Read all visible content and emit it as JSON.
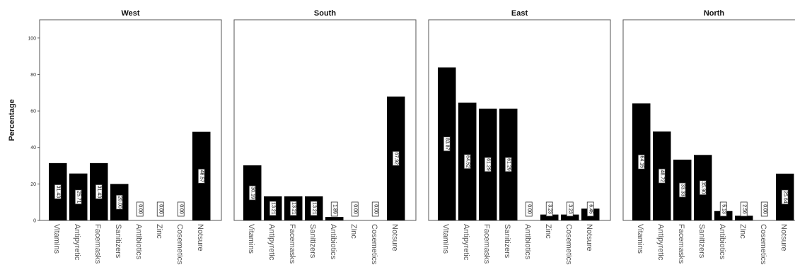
{
  "chart_data": {
    "type": "bar",
    "ylabel": "Percentage",
    "ylim": [
      0,
      110
    ],
    "yticks": [
      0,
      20,
      40,
      60,
      80,
      100
    ],
    "grid": false,
    "bar_color": "#000000",
    "categories": [
      "Vitamins",
      "Antipyretic",
      "Facemasks",
      "Sanitizers",
      "Antibiotics",
      "Zinc",
      "Cosemetics",
      "Notsure"
    ],
    "panels": [
      {
        "title": "West",
        "values": [
          31.43,
          25.71,
          31.43,
          20.0,
          0.0,
          0.0,
          0.0,
          48.57
        ]
      },
      {
        "title": "South",
        "values": [
          30.19,
          13.21,
          13.21,
          13.21,
          1.89,
          0.0,
          0.0,
          67.92
        ]
      },
      {
        "title": "East",
        "values": [
          83.87,
          64.52,
          61.29,
          61.29,
          0.0,
          3.23,
          3.23,
          6.45
        ]
      },
      {
        "title": "North",
        "values": [
          64.15,
          48.72,
          33.33,
          35.9,
          5.13,
          2.56,
          0.0,
          25.64
        ]
      }
    ]
  }
}
